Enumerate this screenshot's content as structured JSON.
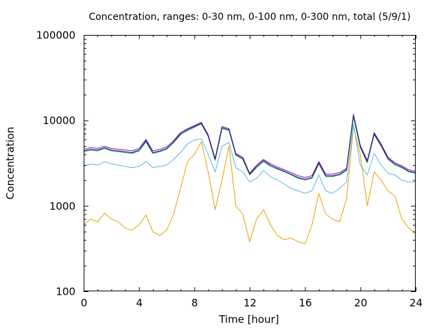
{
  "chart_data": {
    "type": "line",
    "title": "Concentration, ranges: 0-30 nm, 0-100 nm, 0-300 nm, total (5/9/1)",
    "xlabel": "Time [hour]",
    "ylabel": "Concentration",
    "xlim": [
      0,
      24
    ],
    "ylim": [
      100,
      100000
    ],
    "yscale": "log",
    "grid": false,
    "x_ticks": [
      {
        "value": 0,
        "label": "0"
      },
      {
        "value": 4,
        "label": "4"
      },
      {
        "value": 8,
        "label": "8"
      },
      {
        "value": 12,
        "label": "12"
      },
      {
        "value": 16,
        "label": "16"
      },
      {
        "value": 20,
        "label": "20"
      },
      {
        "value": 24,
        "label": "24"
      }
    ],
    "y_ticks": [
      {
        "value": 100,
        "label": "100"
      },
      {
        "value": 1000,
        "label": "1000"
      },
      {
        "value": 10000,
        "label": "10000"
      },
      {
        "value": 100000,
        "label": "100000"
      }
    ],
    "x": [
      0,
      0.5,
      1,
      1.5,
      2,
      2.5,
      3,
      3.5,
      4,
      4.5,
      5,
      5.5,
      6,
      6.5,
      7,
      7.5,
      8,
      8.5,
      9,
      9.5,
      10,
      10.5,
      11,
      11.5,
      12,
      12.5,
      13,
      13.5,
      14,
      14.5,
      15,
      15.5,
      16,
      16.5,
      17,
      17.5,
      18,
      18.5,
      19,
      19.5,
      20,
      20.5,
      21,
      21.5,
      22,
      22.5,
      23,
      23.5,
      24
    ],
    "series": [
      {
        "color": "#e69f00",
        "values": [
          600,
          700,
          650,
          820,
          700,
          650,
          550,
          520,
          600,
          780,
          500,
          450,
          520,
          800,
          1600,
          3300,
          4000,
          5600,
          2500,
          900,
          2000,
          5000,
          1000,
          800,
          380,
          700,
          900,
          600,
          450,
          400,
          420,
          380,
          360,
          600,
          1400,
          800,
          700,
          650,
          1200,
          8500,
          4000,
          1000,
          2500,
          2000,
          1500,
          1300,
          700,
          550,
          480
        ]
      },
      {
        "color": "#56b4e9",
        "values": [
          2900,
          3100,
          3000,
          3300,
          3100,
          3000,
          2900,
          2800,
          2900,
          3300,
          2800,
          2900,
          3000,
          3500,
          4200,
          5300,
          5900,
          6100,
          4000,
          2500,
          5000,
          5500,
          2800,
          2500,
          1900,
          2100,
          2600,
          2200,
          2000,
          1800,
          1600,
          1500,
          1400,
          1500,
          2300,
          1500,
          1400,
          1600,
          1900,
          9000,
          3000,
          2300,
          4100,
          3000,
          2400,
          2300,
          2000,
          1900,
          1900
        ]
      },
      {
        "color": "#009e73",
        "values": [
          4300,
          4500,
          4400,
          4700,
          4400,
          4300,
          4200,
          4100,
          4400,
          5600,
          4100,
          4300,
          4600,
          5500,
          6800,
          7600,
          8300,
          9100,
          6500,
          3400,
          8000,
          7600,
          3900,
          3500,
          2300,
          2800,
          3300,
          2900,
          2700,
          2500,
          2300,
          2100,
          2000,
          2100,
          3100,
          2200,
          2200,
          2300,
          2600,
          11000,
          4800,
          3200,
          6800,
          5000,
          3500,
          3000,
          2800,
          2500,
          2400
        ]
      },
      {
        "color": "#9400d3",
        "values": [
          4600,
          4800,
          4700,
          5000,
          4700,
          4600,
          4500,
          4400,
          4700,
          6000,
          4400,
          4600,
          4900,
          5800,
          7200,
          8000,
          8700,
          9500,
          6800,
          3600,
          8500,
          8000,
          4100,
          3700,
          2400,
          3000,
          3500,
          3100,
          2850,
          2650,
          2450,
          2250,
          2150,
          2250,
          3300,
          2350,
          2350,
          2450,
          2750,
          11800,
          5100,
          3400,
          7200,
          5300,
          3700,
          3200,
          2950,
          2650,
          2550
        ]
      },
      {
        "color": "#1f1f5a",
        "values": [
          4400,
          4600,
          4500,
          4800,
          4500,
          4400,
          4300,
          4200,
          4500,
          5800,
          4200,
          4400,
          4700,
          5600,
          7000,
          7800,
          8500,
          9300,
          6600,
          3500,
          8200,
          7800,
          4000,
          3600,
          2350,
          2900,
          3400,
          3000,
          2750,
          2550,
          2350,
          2150,
          2050,
          2150,
          3200,
          2250,
          2250,
          2350,
          2650,
          11500,
          4900,
          3300,
          7000,
          5100,
          3600,
          3100,
          2850,
          2550,
          2450
        ]
      }
    ]
  }
}
